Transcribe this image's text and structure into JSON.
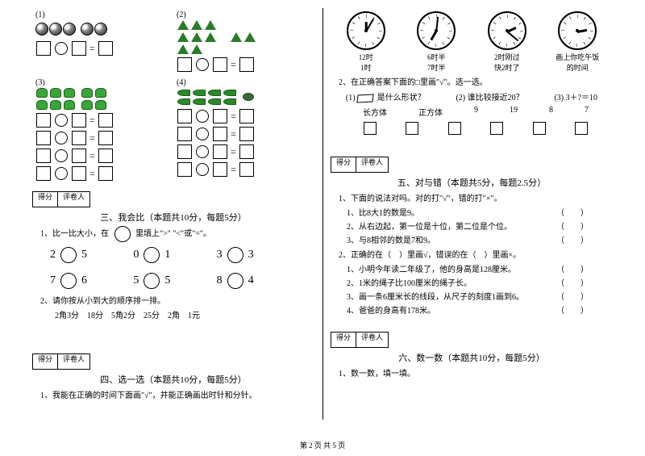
{
  "footer": "第 2 页 共 5 页",
  "left": {
    "q1": {
      "cell1_label": "(1)",
      "cell2_label": "(2)",
      "cell3_label": "(3)",
      "cell4_label": "(4)"
    },
    "sec3": {
      "score_label1": "得分",
      "score_label2": "评卷人",
      "title": "三、我会比（本题共10分，每题5分）",
      "q1": "1、比一比大小，在",
      "q1b": "里填上\">\" \"<\"或\"=\"。",
      "pairs": [
        {
          "a": "2",
          "b": "5"
        },
        {
          "a": "0",
          "b": "1"
        },
        {
          "a": "3",
          "b": "3"
        },
        {
          "a": "7",
          "b": "6"
        },
        {
          "a": "5",
          "b": "5"
        },
        {
          "a": "8",
          "b": "4"
        }
      ],
      "q2": "2、请你按从小到大的顺序排一排。",
      "q2_items": "2角3分　18分　5角2分　25分　2角　1元"
    },
    "sec4": {
      "score_label1": "得分",
      "score_label2": "评卷人",
      "title": "四、选一选（本题共10分，每题5分）",
      "q1": "1、我能在正确的时间下面画\"√\"，并能正确画出时针和分针。"
    }
  },
  "right": {
    "clocks": {
      "labels": [
        "12时",
        "6时半",
        "2时刚过",
        "画上你吃午饭"
      ],
      "labels2": [
        "",
        "",
        "",
        "的时间"
      ],
      "opts": [
        "1时",
        "7时半",
        "快2时了",
        ""
      ]
    },
    "q2": {
      "text": "2、在正确答案下面的□里画\"√\"。选一选。",
      "sub1_label": "(1)",
      "sub1_text": "是什么形状？",
      "sub2_label": "(2) 谁比较接近20？",
      "sub3_label": "(3) 3＋?＝10",
      "row1": [
        "长方体",
        "正方体",
        "9",
        "19",
        "8",
        "7"
      ]
    },
    "sec5": {
      "score_label1": "得分",
      "score_label2": "评卷人",
      "title": "五、对与错（本题共5分，每题2.5分）",
      "q1": "1、下面的说法对吗。对的打\"√\"，错的打\"×\"。",
      "q1_items": [
        "1、比8大1的数是9。",
        "2、从右边起，第一位是十位，第二位是个位。",
        "3、与8相邻的数是7和9。"
      ],
      "q2": "2、正确的在（　）里画√，错误的在（　）里画×。",
      "q2_items": [
        "1、小明今年读二年级了，他的身高是128厘米。",
        "2、1米的绳子比100厘米的绳子长。",
        "3、画一条6厘米长的线段，从尺子的刻度1画到6。",
        "4、爸爸的身高有178米。"
      ]
    },
    "sec6": {
      "score_label1": "得分",
      "score_label2": "评卷人",
      "title": "六、数一数（本题共10分，每题5分）",
      "q1": "1、数一数，填一填。"
    }
  }
}
